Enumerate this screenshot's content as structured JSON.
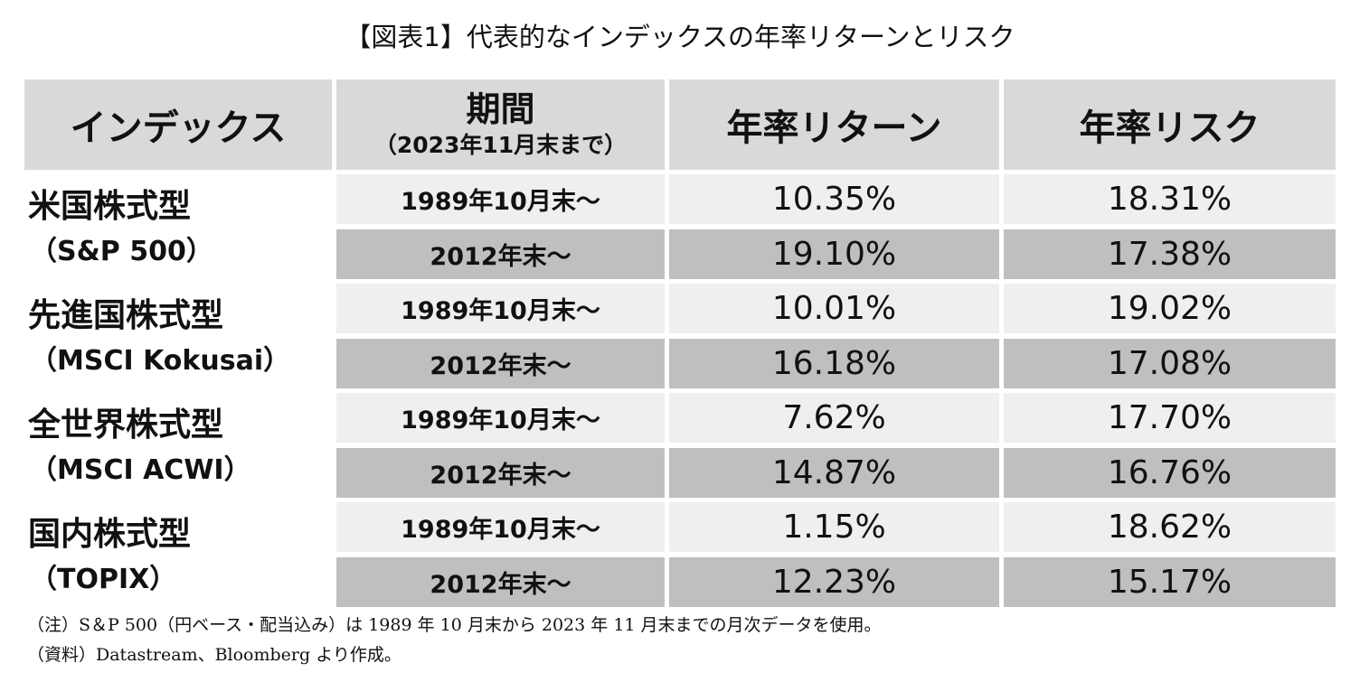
{
  "title": "【図表1】代表的なインデックスの年率リターンとリスク",
  "chart_data": {
    "type": "table",
    "title": "【図表1】代表的なインデックスの年率リターンとリスク",
    "headers": {
      "index": "インデックス",
      "period_main": "期間",
      "period_sub": "（2023年11月末まで）",
      "return": "年率リターン",
      "risk": "年率リスク"
    },
    "rows": [
      {
        "name": "米国株式型",
        "sub": "（S&P 500）",
        "periods": [
          {
            "period": "1989年10月末～",
            "return": "10.35%",
            "risk": "18.31%"
          },
          {
            "period": "2012年末～",
            "return": "19.10%",
            "risk": "17.38%"
          }
        ]
      },
      {
        "name": "先進国株式型",
        "sub": "（MSCI Kokusai）",
        "periods": [
          {
            "period": "1989年10月末～",
            "return": "10.01%",
            "risk": "19.02%"
          },
          {
            "period": "2012年末～",
            "return": "16.18%",
            "risk": "17.08%"
          }
        ]
      },
      {
        "name": "全世界株式型",
        "sub": "（MSCI ACWI）",
        "periods": [
          {
            "period": "1989年10月末～",
            "return": "7.62%",
            "risk": "17.70%"
          },
          {
            "period": "2012年末～",
            "return": "14.87%",
            "risk": "16.76%"
          }
        ]
      },
      {
        "name": "国内株式型",
        "sub": "（TOPIX）",
        "periods": [
          {
            "period": "1989年10月末～",
            "return": "1.15%",
            "risk": "18.62%"
          },
          {
            "period": "2012年末～",
            "return": "12.23%",
            "risk": "15.17%"
          }
        ]
      }
    ],
    "colors": {
      "header_bg": "#d9d9d9",
      "row_light": "#efefef",
      "row_dark": "#bfbfbf"
    }
  },
  "notes": [
    "（注）S＆P 500（円ベース・配当込み）は 1989 年 10 月末から 2023 年 11 月末までの月次データを使用。",
    "（資料）Datastream、Bloomberg より作成。"
  ]
}
